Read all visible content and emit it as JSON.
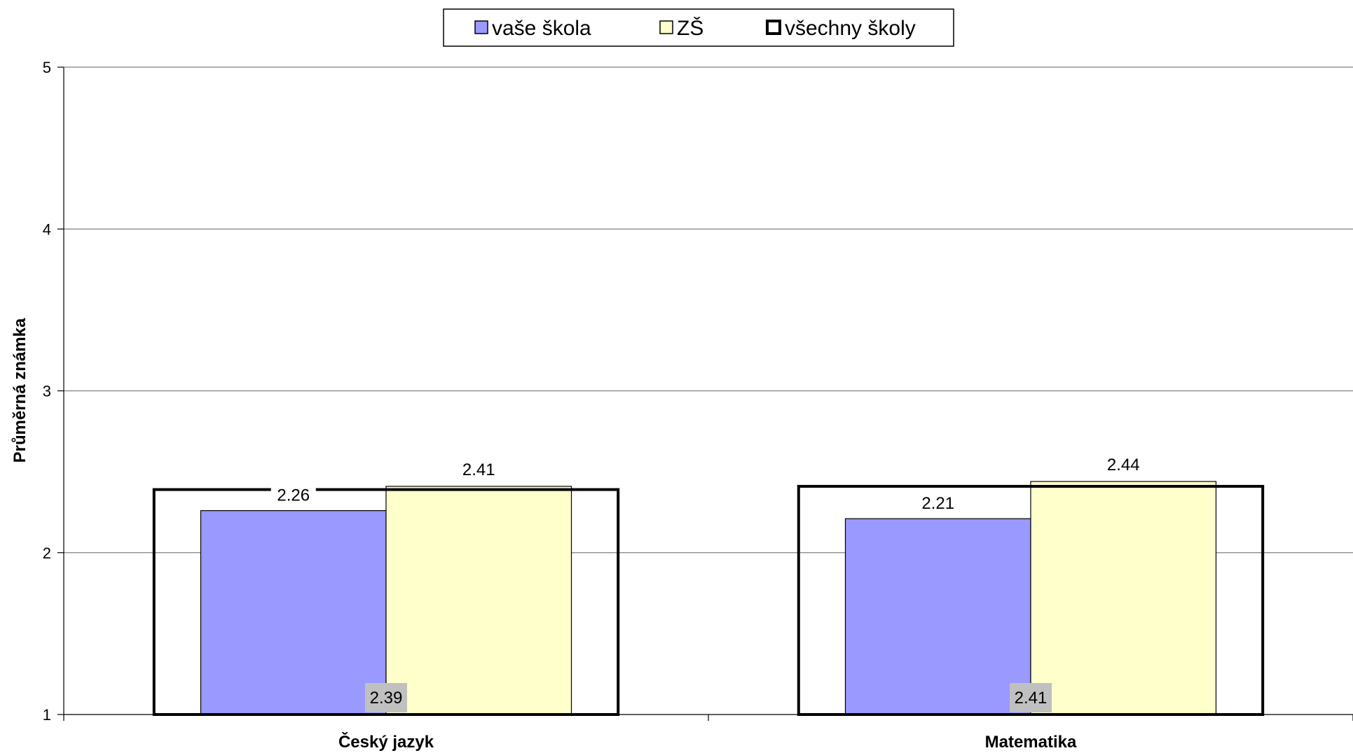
{
  "chart_data": {
    "type": "bar",
    "categories": [
      "Český jazyk",
      "Matematika"
    ],
    "series": [
      {
        "name": "vaše škola",
        "values": [
          2.26,
          2.21
        ],
        "color": "#9999FF",
        "style": "bar"
      },
      {
        "name": "ZŠ",
        "values": [
          2.41,
          2.44
        ],
        "color": "#FFFFCC",
        "style": "bar"
      },
      {
        "name": "všechny školy",
        "values": [
          2.39,
          2.41
        ],
        "color": "#000000",
        "style": "outline-box"
      }
    ],
    "data_labels": {
      "vaše škola": [
        "2.26",
        "2.21"
      ],
      "ZŠ": [
        "2.41",
        "2.44"
      ],
      "všechny školy": [
        "2.39",
        "2.41"
      ]
    },
    "title": "",
    "xlabel": "",
    "ylabel": "Průměrná známka",
    "ylim": [
      1,
      5
    ],
    "yticks": [
      "1",
      "2",
      "3",
      "4",
      "5"
    ],
    "grid": "horizontal",
    "legend_position": "top-center"
  }
}
